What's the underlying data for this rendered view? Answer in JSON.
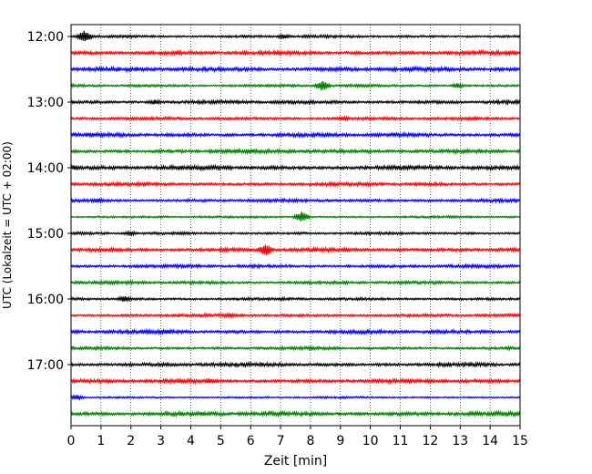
{
  "chart_data": {
    "type": "line",
    "title": "",
    "xlabel": "Zeit  [min]",
    "ylabel": "UTC (Lokalzeit = UTC + 02:00)",
    "xlim": [
      0,
      15
    ],
    "x_ticks": [
      "0",
      "1",
      "2",
      "3",
      "4",
      "5",
      "6",
      "7",
      "8",
      "9",
      "10",
      "11",
      "12",
      "13",
      "14",
      "15"
    ],
    "y_ticks": [
      "12:00",
      "13:00",
      "14:00",
      "15:00",
      "16:00",
      "17:00"
    ],
    "grid": "vertical dotted",
    "trace_interval_minutes": 15,
    "first_trace": "12:00",
    "trace_count": 24,
    "series_colors": [
      "#000000",
      "#ff0000",
      "#0000ff",
      "#008000"
    ],
    "series": [
      {
        "start": "12:00",
        "color": "#000000",
        "noise": 1.3,
        "events": [
          {
            "x": 0.45,
            "amp": 7
          },
          {
            "x": 7.1,
            "amp": 3
          }
        ]
      },
      {
        "start": "12:15",
        "color": "#ff0000",
        "noise": 1.9,
        "events": []
      },
      {
        "start": "12:30",
        "color": "#0000ff",
        "noise": 2.0,
        "events": []
      },
      {
        "start": "12:45",
        "color": "#008000",
        "noise": 1.3,
        "events": [
          {
            "x": 8.4,
            "amp": 6
          },
          {
            "x": 12.9,
            "amp": 3
          }
        ]
      },
      {
        "start": "13:00",
        "color": "#000000",
        "noise": 1.6,
        "events": [
          {
            "x": 2.8,
            "amp": 3
          }
        ]
      },
      {
        "start": "13:15",
        "color": "#ff0000",
        "noise": 1.4,
        "events": [
          {
            "x": 9.1,
            "amp": 3
          }
        ]
      },
      {
        "start": "13:30",
        "color": "#0000ff",
        "noise": 1.8,
        "events": []
      },
      {
        "start": "13:45",
        "color": "#008000",
        "noise": 1.9,
        "events": []
      },
      {
        "start": "14:00",
        "color": "#000000",
        "noise": 2.0,
        "events": [
          {
            "x": 0.1,
            "amp": 3
          }
        ]
      },
      {
        "start": "14:15",
        "color": "#ff0000",
        "noise": 1.6,
        "events": []
      },
      {
        "start": "14:30",
        "color": "#0000ff",
        "noise": 1.5,
        "events": [
          {
            "x": 0.9,
            "amp": 3
          }
        ]
      },
      {
        "start": "14:45",
        "color": "#008000",
        "noise": 1.0,
        "events": [
          {
            "x": 7.7,
            "amp": 6
          }
        ]
      },
      {
        "start": "15:00",
        "color": "#000000",
        "noise": 1.3,
        "events": [
          {
            "x": 2.0,
            "amp": 3
          },
          {
            "x": 3.7,
            "amp": 2
          }
        ]
      },
      {
        "start": "15:15",
        "color": "#ff0000",
        "noise": 1.8,
        "events": [
          {
            "x": 6.5,
            "amp": 7
          }
        ]
      },
      {
        "start": "15:30",
        "color": "#0000ff",
        "noise": 1.5,
        "events": []
      },
      {
        "start": "15:45",
        "color": "#008000",
        "noise": 1.5,
        "events": []
      },
      {
        "start": "16:00",
        "color": "#000000",
        "noise": 1.3,
        "events": [
          {
            "x": 1.8,
            "amp": 4
          }
        ]
      },
      {
        "start": "16:15",
        "color": "#ff0000",
        "noise": 1.4,
        "events": [
          {
            "x": 5.3,
            "amp": 3
          }
        ]
      },
      {
        "start": "16:30",
        "color": "#0000ff",
        "noise": 1.8,
        "events": [
          {
            "x": 3.2,
            "amp": 3
          }
        ]
      },
      {
        "start": "16:45",
        "color": "#008000",
        "noise": 1.4,
        "events": []
      },
      {
        "start": "17:00",
        "color": "#000000",
        "noise": 1.8,
        "events": []
      },
      {
        "start": "17:15",
        "color": "#ff0000",
        "noise": 1.8,
        "events": [
          {
            "x": 4.6,
            "amp": 3
          }
        ]
      },
      {
        "start": "17:30",
        "color": "#0000ff",
        "noise": 0.9,
        "events": [
          {
            "x": 0.2,
            "amp": 3
          }
        ]
      },
      {
        "start": "17:45",
        "color": "#008000",
        "noise": 2.0,
        "events": []
      }
    ]
  }
}
